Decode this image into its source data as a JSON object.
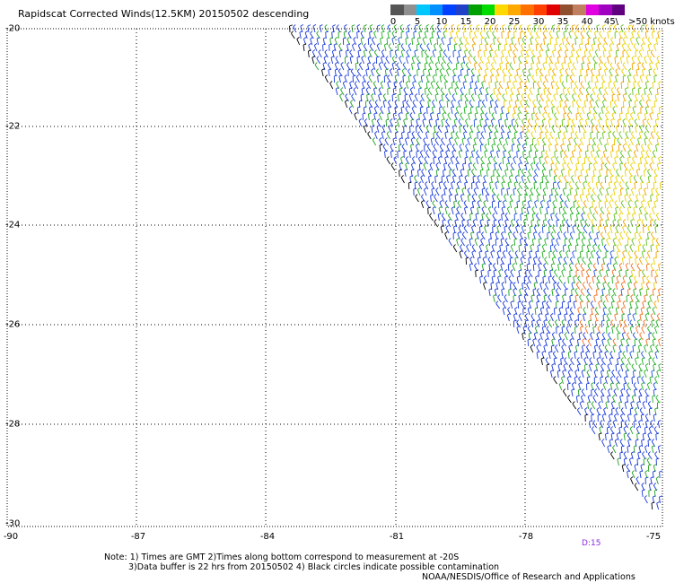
{
  "title": "Rapidscat Corrected Winds(12.5KM) 20150502 descending",
  "colorbar": {
    "colors": [
      "#555555",
      "#909090",
      "#00c8ff",
      "#0090ff",
      "#0040ff",
      "#2040c8",
      "#00a000",
      "#00dc00",
      "#ffd800",
      "#ffa800",
      "#ff7000",
      "#ff4000",
      "#e00000",
      "#905030",
      "#c08060",
      "#e000e0",
      "#a000c0",
      "#600080"
    ],
    "labels": [
      "0",
      "5",
      "10",
      "15",
      "20",
      "25",
      "30",
      "35",
      "40",
      "45\\"
    ],
    "units_label": ">50 knots"
  },
  "map": {
    "lat_labels": [
      "-20",
      "-22",
      "-24",
      "-26",
      "-28",
      "-30"
    ],
    "lon_labels": [
      "-90",
      "-87",
      "-84",
      "-81",
      "-78",
      "-75"
    ],
    "pass_tag": "D:15"
  },
  "notes": {
    "line1": "Note: 1) Times are GMT 2)Times along bottom correspond to measurement at -20S",
    "line2": "3)Data buffer is 22 hrs from 20150502 4) Black circles indicate possible contamination",
    "line3": "NOAA/NESDIS/Office of Research and Applications"
  }
}
